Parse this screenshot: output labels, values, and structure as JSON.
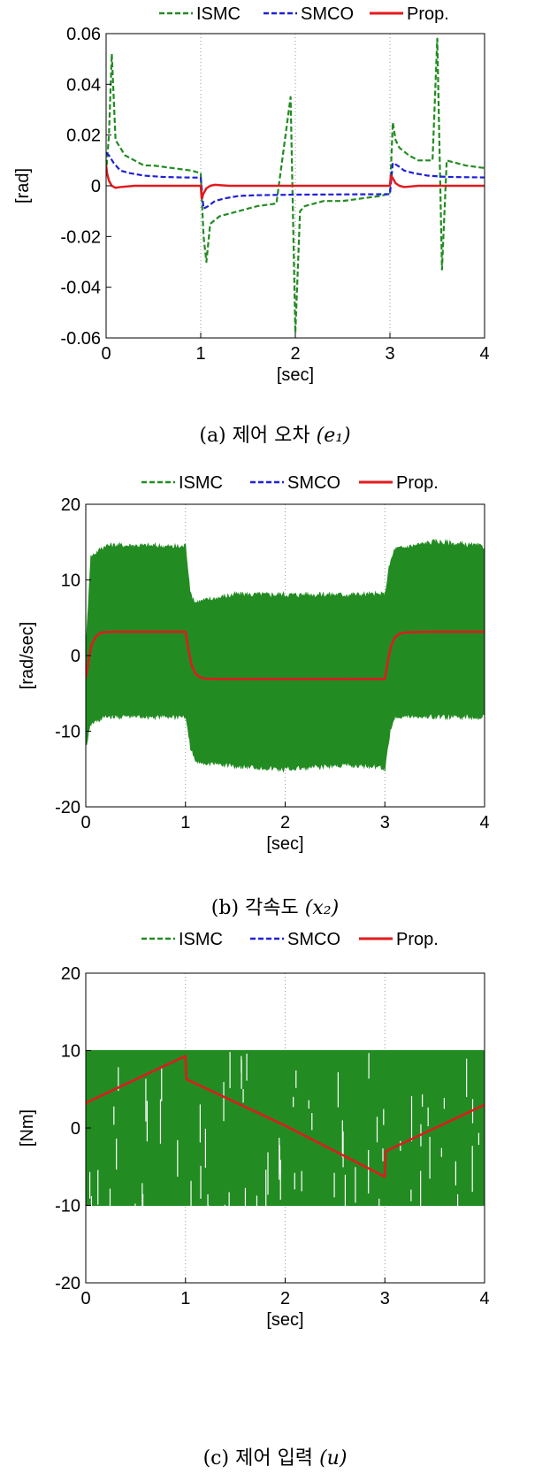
{
  "chart_data": [
    {
      "type": "line",
      "panel": "a",
      "caption": {
        "prefix": "(a)",
        "text": "제어 오차",
        "var": "(e₁)"
      },
      "xlabel": "[sec]",
      "ylabel": "[rad]",
      "xlim": [
        0,
        4
      ],
      "ylim": [
        -0.06,
        0.06
      ],
      "xticks": [
        0,
        1,
        2,
        3,
        4
      ],
      "yticks": [
        -0.06,
        -0.04,
        -0.02,
        0,
        0.02,
        0.04,
        0.06
      ],
      "ytick_labels": [
        "-0.06",
        "-0.04",
        "-0.02",
        "0",
        "0.02",
        "0.04",
        "0.06"
      ],
      "grid": "vertical-dotted",
      "legend": "top",
      "series": [
        {
          "name": "ISMC",
          "color": "#228B22",
          "style": "dashed",
          "x": [
            0,
            0.03,
            0.06,
            0.1,
            0.2,
            0.3,
            0.4,
            0.5,
            0.7,
            0.9,
            1.0,
            1.03,
            1.06,
            1.1,
            1.2,
            1.4,
            1.6,
            1.8,
            1.95,
            2.0,
            2.05,
            2.1,
            2.3,
            2.5,
            2.7,
            2.9,
            3.0,
            3.03,
            3.06,
            3.1,
            3.2,
            3.3,
            3.45,
            3.5,
            3.55,
            3.6,
            3.8,
            4.0
          ],
          "y": [
            0.005,
            0.02,
            0.052,
            0.018,
            0.012,
            0.01,
            0.008,
            0.008,
            0.007,
            0.006,
            0.005,
            -0.02,
            -0.03,
            -0.015,
            -0.012,
            -0.01,
            -0.008,
            -0.007,
            0.035,
            -0.058,
            -0.01,
            -0.008,
            -0.006,
            -0.006,
            -0.005,
            -0.004,
            -0.003,
            0.025,
            0.018,
            0.015,
            0.012,
            0.01,
            0.01,
            0.058,
            -0.033,
            0.01,
            0.008,
            0.007
          ]
        },
        {
          "name": "SMCO",
          "color": "#1f1fd6",
          "style": "dashed",
          "x": [
            0,
            0.03,
            0.08,
            0.15,
            0.25,
            0.4,
            0.6,
            0.8,
            1.0,
            1.03,
            1.08,
            1.15,
            1.25,
            1.4,
            1.6,
            2.0,
            2.5,
            3.0,
            3.03,
            3.08,
            3.15,
            3.25,
            3.4,
            3.6,
            4.0
          ],
          "y": [
            0.013,
            0.012,
            0.009,
            0.006,
            0.005,
            0.004,
            0.0035,
            0.0033,
            0.0032,
            -0.009,
            -0.008,
            -0.006,
            -0.005,
            -0.004,
            -0.0037,
            -0.0035,
            -0.0034,
            -0.0033,
            0.009,
            0.008,
            0.006,
            0.005,
            0.004,
            0.0035,
            0.0033
          ]
        },
        {
          "name": "Prop.",
          "color": "#e31a1c",
          "style": "solid",
          "x": [
            0,
            0.01,
            0.03,
            0.06,
            0.1,
            0.15,
            0.3,
            1.0,
            1.01,
            1.03,
            1.06,
            1.1,
            1.15,
            1.3,
            3.0,
            3.01,
            3.03,
            3.06,
            3.1,
            3.15,
            3.3,
            4.0
          ],
          "y": [
            0.008,
            0.005,
            0.002,
            0.0,
            -0.0008,
            -0.0005,
            0.0,
            0.0,
            -0.005,
            -0.003,
            -0.001,
            0.0,
            0.0004,
            0.0,
            0.0,
            0.004,
            0.003,
            0.001,
            0.0,
            -0.0005,
            0.0,
            0.0
          ]
        }
      ]
    },
    {
      "type": "line",
      "panel": "b",
      "caption": {
        "prefix": "(b)",
        "text": "각속도",
        "var": "(x₂)"
      },
      "xlabel": "[sec]",
      "ylabel": "[rad/sec]",
      "xlim": [
        0,
        4
      ],
      "ylim": [
        -20,
        20
      ],
      "xticks": [
        0,
        1,
        2,
        3,
        4
      ],
      "yticks": [
        -20,
        -10,
        0,
        10,
        20
      ],
      "ytick_labels": [
        "-20",
        "-10",
        "0",
        "10",
        "20"
      ],
      "grid": "vertical-dotted",
      "legend": "top",
      "series": [
        {
          "name": "ISMC",
          "color": "#228B22",
          "style": "dashed",
          "band_x": [
            0,
            0.05,
            0.2,
            0.5,
            0.95,
            1.0,
            1.05,
            1.1,
            1.5,
            2.0,
            2.5,
            2.95,
            3.0,
            3.05,
            3.1,
            3.5,
            4.0
          ],
          "band_upper": [
            0,
            13,
            14.5,
            14.5,
            14.3,
            14.5,
            8,
            7,
            8,
            8,
            8,
            8,
            8,
            12,
            14,
            15,
            14.3
          ],
          "band_lower": [
            -12,
            -9,
            -8,
            -8,
            -8,
            -8,
            -12,
            -14,
            -14.5,
            -15,
            -14.5,
            -14.5,
            -15,
            -10,
            -8,
            -8,
            -8
          ]
        },
        {
          "name": "SMCO",
          "color": "#1f1fd6",
          "style": "dashed",
          "x": [
            0,
            0.03,
            0.06,
            0.1,
            0.15,
            0.2,
            0.3,
            0.5,
            1.0,
            1.03,
            1.06,
            1.1,
            1.15,
            1.2,
            1.3,
            1.5,
            3.0,
            3.03,
            3.06,
            3.1,
            3.15,
            3.2,
            3.3,
            3.5,
            4.0
          ],
          "y": [
            -3,
            -0.5,
            1.5,
            2.5,
            3.0,
            3.1,
            3.14,
            3.14,
            3.14,
            0.8,
            -1.2,
            -2.4,
            -2.9,
            -3.05,
            -3.1,
            -3.1,
            -3.1,
            -0.8,
            1.2,
            2.4,
            2.9,
            3.05,
            3.1,
            3.14,
            3.14
          ]
        },
        {
          "name": "Prop.",
          "color": "#e31a1c",
          "style": "solid",
          "x": [
            0,
            0.03,
            0.06,
            0.1,
            0.15,
            0.2,
            0.3,
            0.5,
            1.0,
            1.03,
            1.06,
            1.1,
            1.15,
            1.2,
            1.3,
            1.5,
            3.0,
            3.03,
            3.06,
            3.1,
            3.15,
            3.2,
            3.3,
            3.5,
            4.0
          ],
          "y": [
            -3,
            -0.5,
            1.5,
            2.5,
            3.0,
            3.1,
            3.14,
            3.14,
            3.14,
            0.8,
            -1.2,
            -2.4,
            -2.9,
            -3.05,
            -3.1,
            -3.1,
            -3.1,
            -0.8,
            1.2,
            2.4,
            2.9,
            3.05,
            3.1,
            3.14,
            3.14
          ]
        }
      ]
    },
    {
      "type": "line",
      "panel": "c",
      "caption": {
        "prefix": "(c)",
        "text": "제어 입력",
        "var": "(u)"
      },
      "xlabel": "[sec]",
      "ylabel": "[Nm]",
      "xlim": [
        0,
        4
      ],
      "ylim": [
        -20,
        20
      ],
      "xticks": [
        0,
        1,
        2,
        3,
        4
      ],
      "yticks": [
        -20,
        -10,
        0,
        10,
        20
      ],
      "ytick_labels": [
        "-20",
        "-10",
        "0",
        "10",
        "20"
      ],
      "grid": "vertical-dotted",
      "legend": "top",
      "series": [
        {
          "name": "ISMC",
          "color": "#228B22",
          "style": "dashed",
          "band_x": [
            0,
            4
          ],
          "band_upper": [
            10,
            10
          ],
          "band_lower": [
            -10,
            -10
          ]
        },
        {
          "name": "SMCO",
          "color": "#1f1fd6",
          "style": "dashed",
          "x": [
            0,
            0.01,
            1.0,
            1.01,
            2.0,
            3.0,
            3.01,
            4.0
          ],
          "y": [
            3.0,
            3.3,
            9.3,
            6.3,
            0.3,
            -6.3,
            -3.0,
            3.0
          ]
        },
        {
          "name": "Prop.",
          "color": "#e31a1c",
          "style": "solid",
          "x": [
            0,
            0.01,
            1.0,
            1.01,
            2.0,
            3.0,
            3.01,
            4.0
          ],
          "y": [
            3.0,
            3.3,
            9.3,
            6.3,
            0.3,
            -6.3,
            -3.0,
            3.0
          ]
        }
      ]
    }
  ]
}
